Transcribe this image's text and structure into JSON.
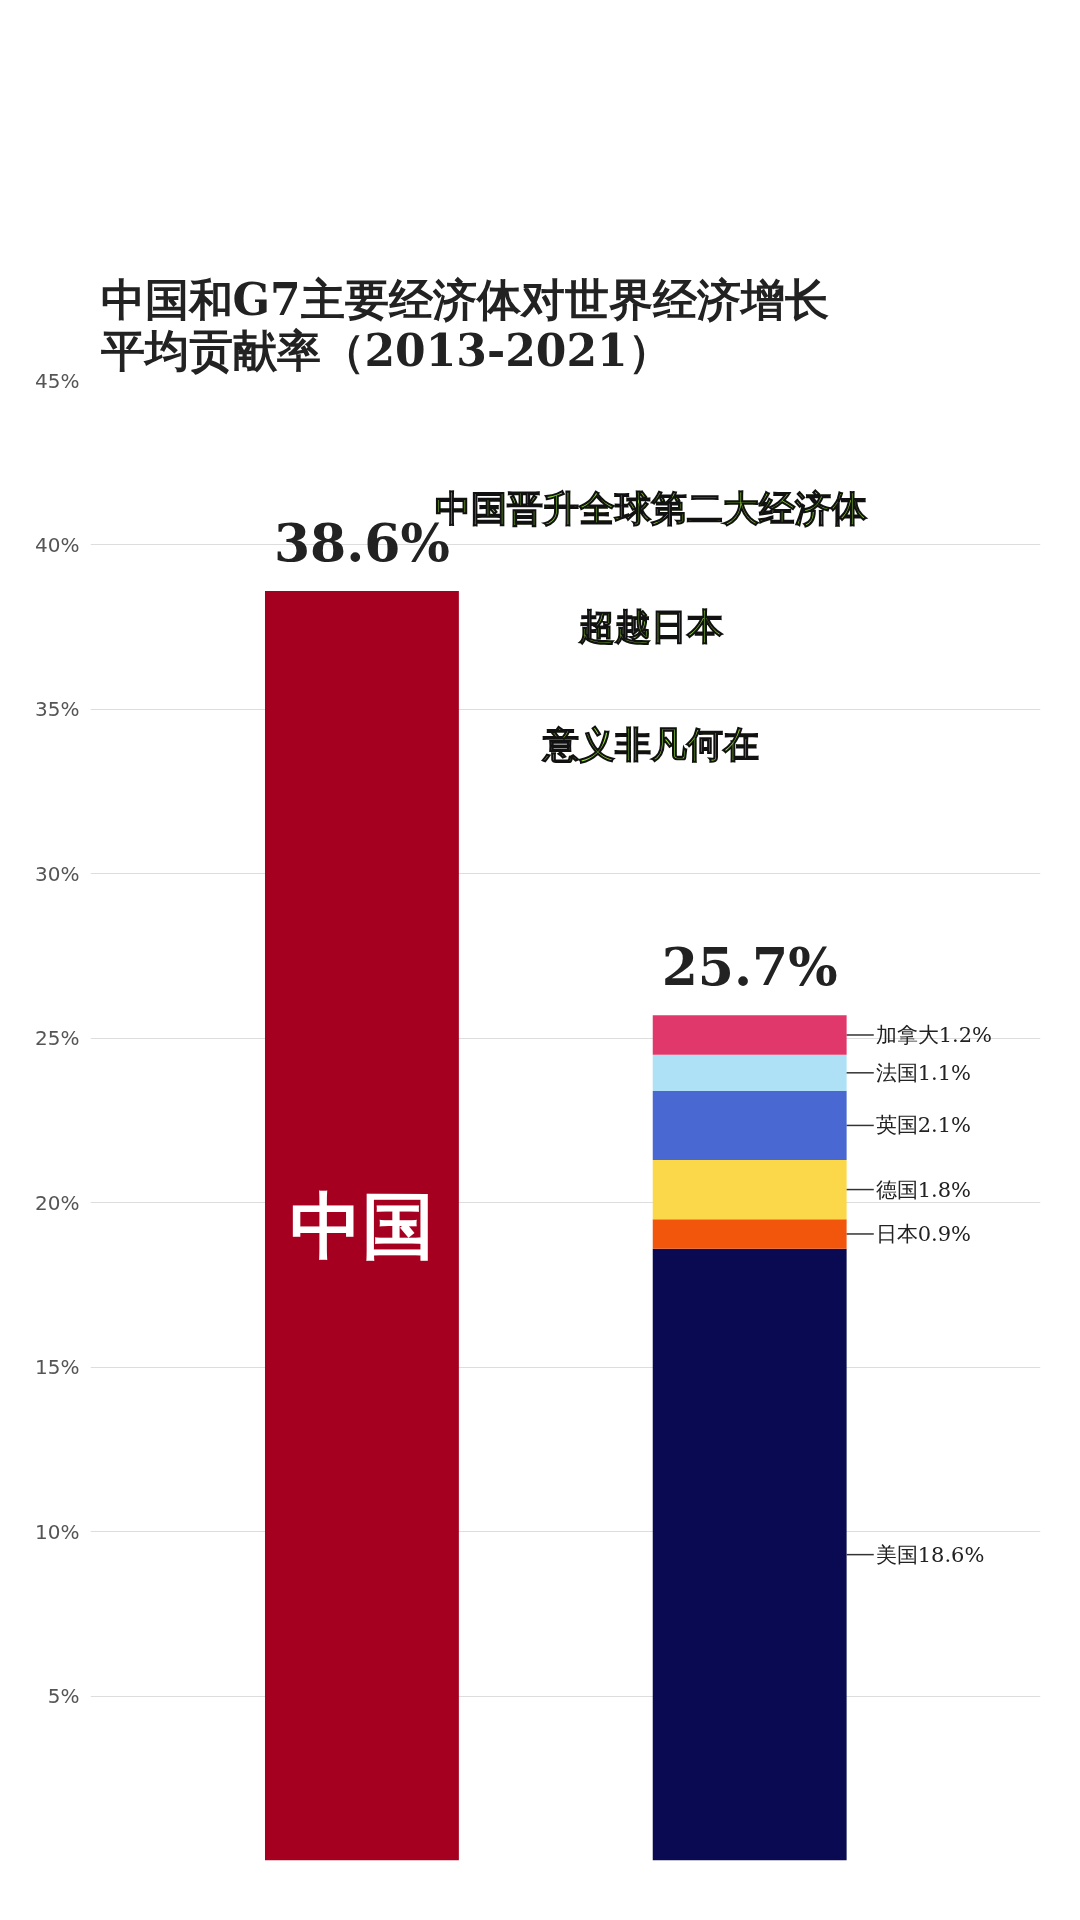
{
  "chart_data": {
    "type": "bar",
    "stacked": true,
    "title": "中国和G7主要经济体对世界经济增长平均贡献率（2013-2021）",
    "categories": [
      "中国",
      null
    ],
    "series": [
      {
        "name": null,
        "color": "#a5001f",
        "values": [
          38.6,
          null
        ]
      },
      {
        "name": "美国",
        "color": "#0a0a52",
        "values": [
          null,
          18.6
        ],
        "value_labels": [
          null,
          "18.6%"
        ]
      },
      {
        "name": "日本",
        "color": "#f2560c",
        "values": [
          null,
          0.9
        ],
        "value_labels": [
          null,
          "0.9%"
        ]
      },
      {
        "name": "德国",
        "color": "#fbd84a",
        "values": [
          null,
          1.8
        ],
        "value_labels": [
          null,
          "1.8%"
        ]
      },
      {
        "name": "英国",
        "color": "#4a68d2",
        "values": [
          null,
          2.1
        ],
        "value_labels": [
          null,
          "2.1%"
        ]
      },
      {
        "name": "法国",
        "color": "#aee0f6",
        "values": [
          null,
          1.1
        ],
        "value_labels": [
          null,
          "1.1%"
        ]
      },
      {
        "name": "加拿大",
        "color": "#e0386a",
        "values": [
          null,
          1.2
        ],
        "value_labels": [
          null,
          "1.2%"
        ]
      }
    ],
    "totals": [
      "38.6%",
      "25.7%"
    ],
    "ylim": [
      0,
      45
    ],
    "yticks": [
      {
        "value": 5,
        "label": "5%"
      },
      {
        "value": 10,
        "label": "10%"
      },
      {
        "value": 15,
        "label": "15%"
      },
      {
        "value": 20,
        "label": "20%"
      },
      {
        "value": 25,
        "label": "25%"
      },
      {
        "value": 30,
        "label": "30%"
      },
      {
        "value": 35,
        "label": "35%"
      },
      {
        "value": 40,
        "label": "40%"
      },
      {
        "value": 45,
        "label": "45%"
      }
    ],
    "grid": "y",
    "annotations": [
      "中国晋升全球第二大经济体",
      "超越日本",
      "意义非凡何在"
    ]
  }
}
